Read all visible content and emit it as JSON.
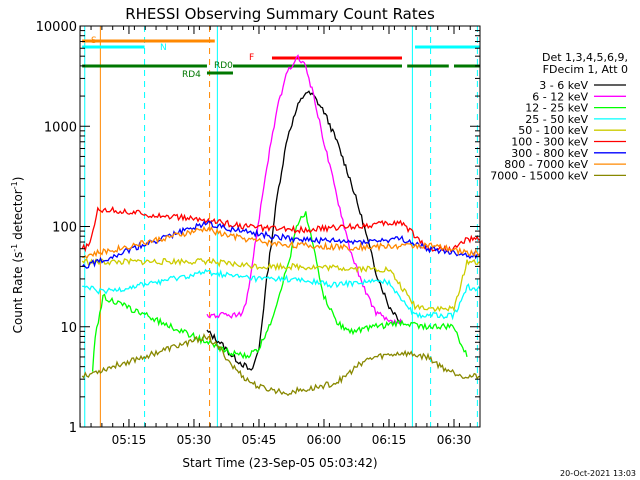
{
  "chart_data": {
    "type": "line",
    "title": "RHESSI Observing Summary Count Rates",
    "xlabel": "Start Time (23-Sep-05 05:03:42)",
    "ylabel_main": "Count Rate (s",
    "ylabel_sup1": "-1",
    "ylabel_mid": " detector",
    "ylabel_sup2": "-1",
    "ylabel_end": ")",
    "yscale": "log",
    "ylim": [
      1,
      10000
    ],
    "xlim": [
      5.0617,
      6.6
    ],
    "xticks": [
      {
        "label": "05:15",
        "value": 5.25
      },
      {
        "label": "05:30",
        "value": 5.5
      },
      {
        "label": "05:45",
        "value": 5.75
      },
      {
        "label": "06:00",
        "value": 6.0
      },
      {
        "label": "06:15",
        "value": 6.25
      },
      {
        "label": "06:30",
        "value": 6.5
      }
    ],
    "yticks": [
      {
        "label": "1",
        "value": 1
      },
      {
        "label": "10",
        "value": 10
      },
      {
        "label": "100",
        "value": 100
      },
      {
        "label": "1000",
        "value": 1000
      },
      {
        "label": "10000",
        "value": 10000
      }
    ],
    "legend_header": [
      "Det 1,3,4,5,6,9,",
      "FDecim 1, Att 0"
    ],
    "timestamp": "20-Oct-2021 13:03",
    "series": [
      {
        "name": "3 - 6 keV",
        "color": "#000000",
        "points": [
          [
            5.55,
            9
          ],
          [
            5.6,
            7
          ],
          [
            5.65,
            5
          ],
          [
            5.7,
            4
          ],
          [
            5.72,
            3.5
          ],
          [
            5.75,
            6
          ],
          [
            5.78,
            30
          ],
          [
            5.82,
            200
          ],
          [
            5.86,
            800
          ],
          [
            5.9,
            1600
          ],
          [
            5.93,
            2200
          ],
          [
            5.96,
            2000
          ],
          [
            6.0,
            1400
          ],
          [
            6.05,
            700
          ],
          [
            6.1,
            300
          ],
          [
            6.15,
            110
          ],
          [
            6.2,
            35
          ],
          [
            6.25,
            16
          ],
          [
            6.3,
            11
          ]
        ]
      },
      {
        "name": "6 - 12 keV",
        "color": "#ff00ff",
        "points": [
          [
            5.55,
            13
          ],
          [
            5.6,
            13
          ],
          [
            5.65,
            13
          ],
          [
            5.68,
            13
          ],
          [
            5.7,
            16
          ],
          [
            5.74,
            80
          ],
          [
            5.78,
            400
          ],
          [
            5.82,
            1500
          ],
          [
            5.86,
            3500
          ],
          [
            5.9,
            4800
          ],
          [
            5.93,
            4000
          ],
          [
            5.96,
            2000
          ],
          [
            6.0,
            700
          ],
          [
            6.05,
            200
          ],
          [
            6.1,
            60
          ],
          [
            6.15,
            25
          ],
          [
            6.2,
            14
          ],
          [
            6.25,
            11
          ],
          [
            6.3,
            11
          ]
        ]
      },
      {
        "name": "12 - 25 keV",
        "color": "#00ff00",
        "points": [
          [
            5.11,
            3.5
          ],
          [
            5.12,
            8
          ],
          [
            5.15,
            20
          ],
          [
            5.55,
            7
          ],
          [
            5.6,
            6
          ],
          [
            5.65,
            5.5
          ],
          [
            5.7,
            5
          ],
          [
            5.75,
            6
          ],
          [
            5.8,
            12
          ],
          [
            5.86,
            40
          ],
          [
            5.9,
            110
          ],
          [
            5.93,
            140
          ],
          [
            5.96,
            60
          ],
          [
            6.0,
            20
          ],
          [
            6.05,
            11
          ],
          [
            6.1,
            9
          ],
          [
            6.2,
            10
          ],
          [
            6.3,
            11
          ],
          [
            6.4,
            10
          ],
          [
            6.5,
            10
          ],
          [
            6.55,
            5
          ]
        ]
      },
      {
        "name": "25 - 50 keV",
        "color": "#00ffff",
        "points": [
          [
            5.07,
            25
          ],
          [
            5.1,
            24
          ],
          [
            5.15,
            22
          ],
          [
            5.55,
            35
          ],
          [
            5.65,
            32
          ],
          [
            5.75,
            30
          ],
          [
            5.85,
            30
          ],
          [
            5.95,
            28
          ],
          [
            6.05,
            26
          ],
          [
            6.15,
            28
          ],
          [
            6.25,
            28
          ],
          [
            6.35,
            13
          ],
          [
            6.45,
            13
          ],
          [
            6.5,
            13
          ],
          [
            6.55,
            25
          ],
          [
            6.6,
            24
          ]
        ]
      },
      {
        "name": "50 - 100 keV",
        "color": "#cccc00",
        "points": [
          [
            5.07,
            45
          ],
          [
            5.1,
            44
          ],
          [
            5.55,
            45
          ],
          [
            5.65,
            42
          ],
          [
            5.75,
            40
          ],
          [
            5.85,
            40
          ],
          [
            6.0,
            39
          ],
          [
            6.15,
            38
          ],
          [
            6.25,
            37
          ],
          [
            6.35,
            16
          ],
          [
            6.45,
            15
          ],
          [
            6.5,
            15
          ],
          [
            6.55,
            45
          ],
          [
            6.6,
            44
          ]
        ]
      },
      {
        "name": "100 - 300 keV",
        "color": "#ff0000",
        "points": [
          [
            5.07,
            60
          ],
          [
            5.1,
            65
          ],
          [
            5.13,
            150
          ],
          [
            5.55,
            115
          ],
          [
            5.6,
            110
          ],
          [
            5.7,
            100
          ],
          [
            5.8,
            95
          ],
          [
            5.9,
            93
          ],
          [
            6.0,
            95
          ],
          [
            6.1,
            100
          ],
          [
            6.2,
            105
          ],
          [
            6.3,
            110
          ],
          [
            6.4,
            60
          ],
          [
            6.5,
            60
          ],
          [
            6.55,
            75
          ],
          [
            6.6,
            74
          ]
        ]
      },
      {
        "name": "300 - 800 keV",
        "color": "#0000ff",
        "points": [
          [
            5.07,
            40
          ],
          [
            5.1,
            42
          ],
          [
            5.55,
            110
          ],
          [
            5.6,
            100
          ],
          [
            5.7,
            88
          ],
          [
            5.8,
            80
          ],
          [
            5.9,
            75
          ],
          [
            6.0,
            72
          ],
          [
            6.1,
            70
          ],
          [
            6.2,
            72
          ],
          [
            6.3,
            75
          ],
          [
            6.4,
            60
          ],
          [
            6.5,
            55
          ],
          [
            6.55,
            52
          ],
          [
            6.6,
            50
          ]
        ]
      },
      {
        "name": "800 - 7000 keV",
        "color": "#ff8800",
        "points": [
          [
            5.07,
            50
          ],
          [
            5.1,
            52
          ],
          [
            5.55,
            95
          ],
          [
            5.6,
            85
          ],
          [
            5.7,
            75
          ],
          [
            5.8,
            68
          ],
          [
            5.9,
            65
          ],
          [
            6.0,
            63
          ],
          [
            6.1,
            62
          ],
          [
            6.2,
            63
          ],
          [
            6.3,
            64
          ],
          [
            6.4,
            65
          ],
          [
            6.5,
            58
          ],
          [
            6.55,
            55
          ],
          [
            6.6,
            54
          ]
        ]
      },
      {
        "name": "7000 - 15000 keV",
        "color": "#888800",
        "points": [
          [
            5.07,
            3.3
          ],
          [
            5.1,
            3.4
          ],
          [
            5.55,
            8
          ],
          [
            5.6,
            6
          ],
          [
            5.65,
            4
          ],
          [
            5.7,
            3
          ],
          [
            5.75,
            2.5
          ],
          [
            5.85,
            2.2
          ],
          [
            5.95,
            2.4
          ],
          [
            6.05,
            2.8
          ],
          [
            6.1,
            3.5
          ],
          [
            6.15,
            4.5
          ],
          [
            6.2,
            5
          ],
          [
            6.3,
            5.5
          ],
          [
            6.4,
            5
          ],
          [
            6.45,
            4
          ],
          [
            6.5,
            3.5
          ],
          [
            6.55,
            3.2
          ],
          [
            6.6,
            3.2
          ]
        ]
      }
    ],
    "status_bars": [
      {
        "label": "S",
        "color": "#ff8800",
        "segments": [
          [
            5.07,
            5.58
          ]
        ],
        "level": "top"
      },
      {
        "label": "N",
        "color": "#00ffff",
        "segments": [
          [
            5.07,
            5.31
          ],
          [
            6.35,
            6.6
          ]
        ],
        "level": "second"
      },
      {
        "label": "F",
        "color": "#ff0000",
        "segments": [
          [
            5.8,
            6.3
          ]
        ],
        "level": "third"
      },
      {
        "label": "RD0",
        "color": "#007700",
        "segments": [
          [
            5.07,
            5.55
          ],
          [
            5.65,
            6.3
          ],
          [
            6.32,
            6.48
          ],
          [
            6.5,
            6.6
          ]
        ],
        "level": "fourth"
      },
      {
        "label": "RD4",
        "color": "#007700",
        "segments": [
          [
            5.55,
            5.65
          ]
        ],
        "level": "fifth"
      }
    ],
    "vlines": [
      {
        "x": 5.08,
        "color": "#00ffff",
        "style": "solid"
      },
      {
        "x": 5.14,
        "color": "#ff8800",
        "style": "solid"
      },
      {
        "x": 5.31,
        "color": "#00ffff",
        "style": "dashed"
      },
      {
        "x": 5.56,
        "color": "#ff8800",
        "style": "dashed"
      },
      {
        "x": 5.59,
        "color": "#00ffff",
        "style": "solid"
      },
      {
        "x": 6.34,
        "color": "#00ffff",
        "style": "solid"
      },
      {
        "x": 6.41,
        "color": "#00ffff",
        "style": "dashed"
      },
      {
        "x": 6.59,
        "color": "#00ffff",
        "style": "dashed"
      }
    ]
  }
}
